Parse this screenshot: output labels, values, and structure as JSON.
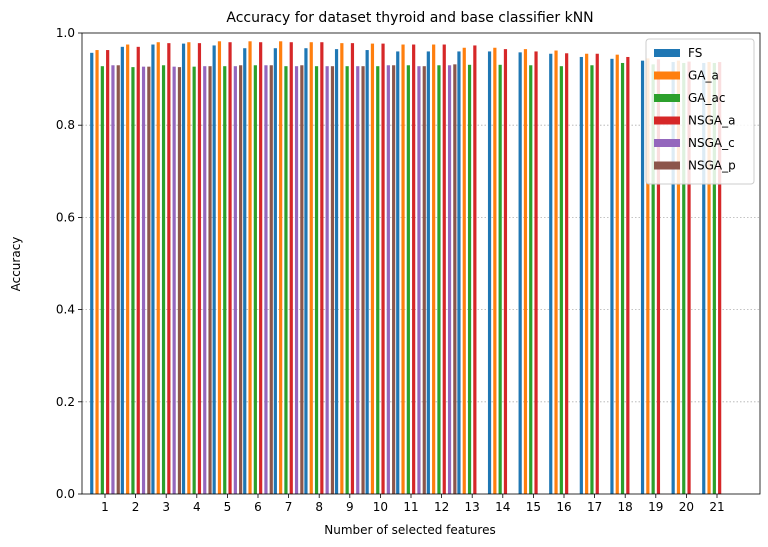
{
  "chart_data": {
    "type": "bar",
    "title": "Accuracy for dataset thyroid and base classifier kNN",
    "xlabel": "Number of selected features",
    "ylabel": "Accuracy",
    "ylim": [
      0,
      1.0
    ],
    "yticks": [
      "0.0",
      "0.2",
      "0.4",
      "0.6",
      "0.8",
      "1.0"
    ],
    "grid": "y dotted",
    "legend_position": "top-right",
    "categories": [
      "1",
      "2",
      "3",
      "4",
      "5",
      "6",
      "7",
      "8",
      "9",
      "10",
      "11",
      "12",
      "13",
      "14",
      "15",
      "16",
      "17",
      "18",
      "19",
      "20",
      "21"
    ],
    "series": [
      {
        "name": "FS",
        "color": "#1f77b4",
        "values": [
          0.957,
          0.97,
          0.975,
          0.977,
          0.973,
          0.967,
          0.967,
          0.967,
          0.965,
          0.963,
          0.96,
          0.96,
          0.96,
          0.96,
          0.958,
          0.955,
          0.948,
          0.944,
          0.94,
          0.937,
          0.935
        ]
      },
      {
        "name": "GA_a",
        "color": "#ff7f0e",
        "values": [
          0.963,
          0.975,
          0.98,
          0.98,
          0.982,
          0.982,
          0.982,
          0.98,
          0.978,
          0.977,
          0.975,
          0.975,
          0.968,
          0.968,
          0.965,
          0.962,
          0.955,
          0.953,
          0.945,
          0.94,
          0.937
        ]
      },
      {
        "name": "GA_ac",
        "color": "#2ca02c",
        "values": [
          0.928,
          0.926,
          0.93,
          0.927,
          0.928,
          0.93,
          0.928,
          0.928,
          0.928,
          0.928,
          0.93,
          0.93,
          0.931,
          0.931,
          0.93,
          0.928,
          0.93,
          0.935,
          0.932,
          0.935,
          0.935
        ]
      },
      {
        "name": "NSGA_a",
        "color": "#d62728",
        "values": [
          0.963,
          0.97,
          0.978,
          0.978,
          0.98,
          0.98,
          0.98,
          0.98,
          0.978,
          0.977,
          0.975,
          0.975,
          0.973,
          0.965,
          0.96,
          0.956,
          0.955,
          0.948,
          0.943,
          0.938,
          0.937
        ]
      },
      {
        "name": "NSGA_c",
        "color": "#9467bd",
        "values": [
          0.93,
          0.927,
          0.927,
          0.928,
          0.928,
          0.93,
          0.928,
          0.928,
          0.928,
          0.93,
          0.928,
          0.93,
          null,
          null,
          null,
          null,
          null,
          null,
          null,
          null,
          null
        ]
      },
      {
        "name": "NSGA_p",
        "color": "#8c564b",
        "values": [
          0.93,
          0.927,
          0.926,
          0.928,
          0.93,
          0.93,
          0.93,
          0.928,
          0.928,
          0.93,
          0.928,
          0.932,
          null,
          null,
          null,
          null,
          null,
          null,
          null,
          null,
          null
        ]
      }
    ]
  }
}
